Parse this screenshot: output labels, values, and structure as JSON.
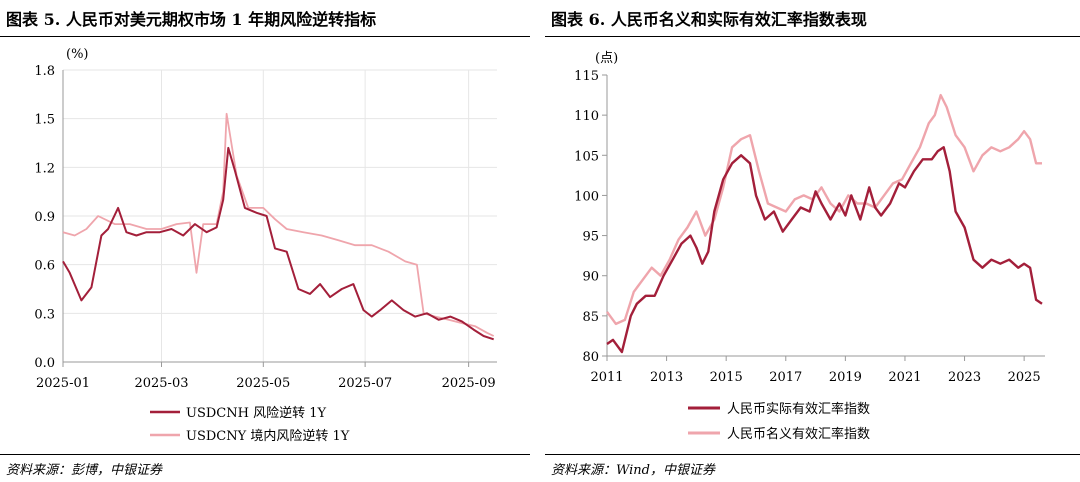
{
  "colors": {
    "dark_red": "#A31F3A",
    "light_pink": "#EFA5AC",
    "axis": "#999999",
    "text": "#000000"
  },
  "left": {
    "title": "图表 5. 人民币对美元期权市场 1 年期风险逆转指标",
    "source": "资料来源：彭博，中银证券",
    "unit": "(%)",
    "legend": [
      "USDCNH 风险逆转 1Y",
      "USDCNY 境内风险逆转 1Y"
    ]
  },
  "right": {
    "title": "图表 6. 人民币名义和实际有效汇率指数表现",
    "source": "资料来源：Wind，中银证券",
    "unit": "(点)",
    "legend": [
      "人民币实际有效汇率指数",
      "人民币名义有效汇率指数"
    ]
  },
  "chart_data": [
    {
      "type": "line",
      "ylim": [
        0,
        1.8
      ],
      "yticks": [
        "0.0",
        "0.3",
        "0.6",
        "0.9",
        "1.2",
        "1.5",
        "1.8"
      ],
      "xticks": [
        "2025-01",
        "2025-03",
        "2025-05",
        "2025-07",
        "2025-09"
      ],
      "xlim": [
        "2025-01-01",
        "2025-09-18"
      ],
      "series": [
        {
          "name": "USDCNH 风险逆转 1Y",
          "color": "#A31F3A",
          "x": [
            "2025-01-01",
            "2025-01-05",
            "2025-01-12",
            "2025-01-18",
            "2025-01-24",
            "2025-01-28",
            "2025-02-03",
            "2025-02-08",
            "2025-02-14",
            "2025-02-20",
            "2025-02-28",
            "2025-03-07",
            "2025-03-14",
            "2025-03-21",
            "2025-03-28",
            "2025-04-03",
            "2025-04-07",
            "2025-04-10",
            "2025-04-14",
            "2025-04-20",
            "2025-04-27",
            "2025-05-03",
            "2025-05-08",
            "2025-05-15",
            "2025-05-22",
            "2025-05-29",
            "2025-06-04",
            "2025-06-10",
            "2025-06-17",
            "2025-06-24",
            "2025-06-30",
            "2025-07-05",
            "2025-07-10",
            "2025-07-17",
            "2025-07-24",
            "2025-07-31",
            "2025-08-07",
            "2025-08-14",
            "2025-08-21",
            "2025-08-28",
            "2025-09-04",
            "2025-09-10",
            "2025-09-16"
          ],
          "values": [
            0.62,
            0.55,
            0.38,
            0.46,
            0.78,
            0.82,
            0.95,
            0.8,
            0.78,
            0.8,
            0.8,
            0.82,
            0.78,
            0.85,
            0.8,
            0.83,
            1.0,
            1.32,
            1.18,
            0.95,
            0.92,
            0.9,
            0.7,
            0.68,
            0.45,
            0.42,
            0.48,
            0.4,
            0.45,
            0.48,
            0.32,
            0.28,
            0.32,
            0.38,
            0.32,
            0.28,
            0.3,
            0.26,
            0.28,
            0.25,
            0.2,
            0.16,
            0.14
          ]
        },
        {
          "name": "USDCNY 境内风险逆转 1Y",
          "color": "#EFA5AC",
          "x": [
            "2025-01-01",
            "2025-01-08",
            "2025-01-15",
            "2025-01-22",
            "2025-02-01",
            "2025-02-10",
            "2025-02-20",
            "2025-03-01",
            "2025-03-10",
            "2025-03-18",
            "2025-03-22",
            "2025-03-26",
            "2025-04-03",
            "2025-04-07",
            "2025-04-09",
            "2025-04-15",
            "2025-04-22",
            "2025-05-01",
            "2025-05-08",
            "2025-05-15",
            "2025-05-25",
            "2025-06-05",
            "2025-06-15",
            "2025-06-25",
            "2025-07-05",
            "2025-07-15",
            "2025-07-25",
            "2025-08-01",
            "2025-08-05",
            "2025-08-12",
            "2025-08-20",
            "2025-08-28",
            "2025-09-05",
            "2025-09-12",
            "2025-09-16"
          ],
          "values": [
            0.8,
            0.78,
            0.82,
            0.9,
            0.85,
            0.85,
            0.82,
            0.82,
            0.85,
            0.86,
            0.55,
            0.85,
            0.85,
            1.05,
            1.53,
            1.15,
            0.95,
            0.95,
            0.88,
            0.82,
            0.8,
            0.78,
            0.75,
            0.72,
            0.72,
            0.68,
            0.62,
            0.6,
            0.3,
            0.28,
            0.26,
            0.24,
            0.22,
            0.18,
            0.16
          ]
        }
      ]
    },
    {
      "type": "line",
      "ylim": [
        80,
        115
      ],
      "yticks": [
        "80",
        "85",
        "90",
        "95",
        "100",
        "105",
        "110",
        "115"
      ],
      "xticks": [
        "2011",
        "2013",
        "2015",
        "2017",
        "2019",
        "2021",
        "2023",
        "2025"
      ],
      "xlim": [
        2011.0,
        2025.7
      ],
      "series": [
        {
          "name": "人民币实际有效汇率指数",
          "color": "#A31F3A",
          "x": [
            2011.0,
            2011.2,
            2011.5,
            2011.8,
            2012.0,
            2012.3,
            2012.6,
            2012.9,
            2013.2,
            2013.5,
            2013.8,
            2014.0,
            2014.2,
            2014.4,
            2014.6,
            2014.9,
            2015.2,
            2015.5,
            2015.8,
            2016.0,
            2016.3,
            2016.6,
            2016.9,
            2017.2,
            2017.5,
            2017.8,
            2018.0,
            2018.2,
            2018.5,
            2018.8,
            2019.0,
            2019.2,
            2019.5,
            2019.8,
            2020.0,
            2020.2,
            2020.5,
            2020.8,
            2021.0,
            2021.3,
            2021.6,
            2021.9,
            2022.1,
            2022.3,
            2022.5,
            2022.7,
            2023.0,
            2023.3,
            2023.6,
            2023.9,
            2024.2,
            2024.5,
            2024.8,
            2025.0,
            2025.2,
            2025.4,
            2025.6
          ],
          "values": [
            81.5,
            82,
            80.5,
            85,
            86.5,
            87.5,
            87.5,
            90,
            92,
            94,
            95,
            93.5,
            91.5,
            93,
            98,
            102,
            104,
            105,
            104,
            100,
            97,
            98,
            95.5,
            97,
            98.5,
            98,
            100.5,
            99,
            97,
            99,
            97.5,
            100,
            97,
            101,
            98.5,
            97.5,
            99,
            101.5,
            101,
            103,
            104.5,
            104.5,
            105.5,
            106,
            103,
            98,
            96,
            92,
            91,
            92,
            91.5,
            92,
            91,
            91.5,
            91,
            87,
            86.5
          ]
        },
        {
          "name": "人民币名义有效汇率指数",
          "color": "#EFA5AC",
          "x": [
            2011.0,
            2011.3,
            2011.6,
            2011.9,
            2012.2,
            2012.5,
            2012.8,
            2013.1,
            2013.4,
            2013.7,
            2014.0,
            2014.3,
            2014.6,
            2014.9,
            2015.2,
            2015.5,
            2015.8,
            2016.1,
            2016.4,
            2016.7,
            2017.0,
            2017.3,
            2017.6,
            2017.9,
            2018.2,
            2018.5,
            2018.8,
            2019.1,
            2019.4,
            2019.7,
            2020.0,
            2020.3,
            2020.6,
            2020.9,
            2021.2,
            2021.5,
            2021.8,
            2022.0,
            2022.2,
            2022.4,
            2022.7,
            2023.0,
            2023.3,
            2023.6,
            2023.9,
            2024.2,
            2024.5,
            2024.8,
            2025.0,
            2025.2,
            2025.4,
            2025.6
          ],
          "values": [
            85.5,
            84,
            84.5,
            88,
            89.5,
            91,
            90,
            92,
            94.5,
            96,
            98,
            95,
            97,
            101,
            106,
            107,
            107.5,
            103,
            99,
            98.5,
            98,
            99.5,
            100,
            99.5,
            101,
            99,
            98,
            100,
            99,
            99,
            98.5,
            100,
            101.5,
            102,
            104,
            106,
            109,
            110,
            112.5,
            111,
            107.5,
            106,
            103,
            105,
            106,
            105.5,
            106,
            107,
            108,
            107,
            104,
            104
          ]
        }
      ]
    }
  ]
}
